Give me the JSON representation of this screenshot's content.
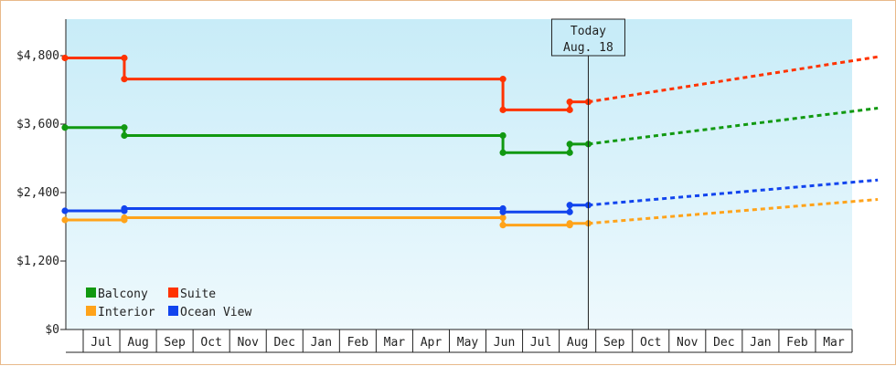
{
  "chart_data": {
    "type": "line",
    "y_ticks": [
      "$0",
      "$1,200",
      "$2,400",
      "$3,600",
      "$4,800"
    ],
    "ylim": [
      0,
      5800
    ],
    "x_ticks": [
      "Jul",
      "Aug",
      "Sep",
      "Oct",
      "Nov",
      "Dec",
      "Jan",
      "Feb",
      "Mar",
      "Apr",
      "May",
      "Jun",
      "Jul",
      "Aug",
      "Sep",
      "Oct",
      "Nov",
      "Dec",
      "Jan",
      "Feb",
      "Mar"
    ],
    "grid": false,
    "legend_placement": "bottom-left",
    "annotation": {
      "line1": "Today",
      "line2": "Aug. 18",
      "x": 14.1
    },
    "series": [
      {
        "name": "Balcony",
        "color": "#119911",
        "points": [
          [
            0,
            3540
          ],
          [
            1.6,
            3540
          ],
          [
            1.6,
            3400
          ],
          [
            11.8,
            3400
          ],
          [
            11.8,
            3100
          ],
          [
            13.6,
            3100
          ],
          [
            13.6,
            3250
          ],
          [
            14.1,
            3250
          ]
        ],
        "projection": [
          [
            14.1,
            3250
          ],
          [
            21.9,
            3880
          ]
        ]
      },
      {
        "name": "Suite",
        "color": "#ff3300",
        "points": [
          [
            0,
            4760
          ],
          [
            1.6,
            4760
          ],
          [
            1.6,
            4390
          ],
          [
            11.8,
            4390
          ],
          [
            11.8,
            3850
          ],
          [
            13.6,
            3850
          ],
          [
            13.6,
            3990
          ],
          [
            14.1,
            3990
          ]
        ],
        "projection": [
          [
            14.1,
            3990
          ],
          [
            21.9,
            4780
          ]
        ]
      },
      {
        "name": "Interior",
        "color": "#ffa31a",
        "points": [
          [
            0,
            1920
          ],
          [
            1.6,
            1920
          ],
          [
            1.6,
            1960
          ],
          [
            11.8,
            1960
          ],
          [
            11.8,
            1830
          ],
          [
            13.6,
            1830
          ],
          [
            13.6,
            1860
          ],
          [
            14.1,
            1860
          ]
        ],
        "projection": [
          [
            14.1,
            1860
          ],
          [
            21.9,
            2280
          ]
        ]
      },
      {
        "name": "Ocean View",
        "color": "#1144ee",
        "points": [
          [
            0,
            2080
          ],
          [
            1.6,
            2080
          ],
          [
            1.6,
            2120
          ],
          [
            11.8,
            2120
          ],
          [
            11.8,
            2060
          ],
          [
            13.6,
            2060
          ],
          [
            13.6,
            2180
          ],
          [
            14.1,
            2180
          ]
        ],
        "projection": [
          [
            14.1,
            2180
          ],
          [
            21.9,
            2620
          ]
        ]
      }
    ],
    "legend_rows": [
      [
        "Balcony",
        "Suite"
      ],
      [
        "Interior",
        "Ocean View"
      ]
    ]
  }
}
